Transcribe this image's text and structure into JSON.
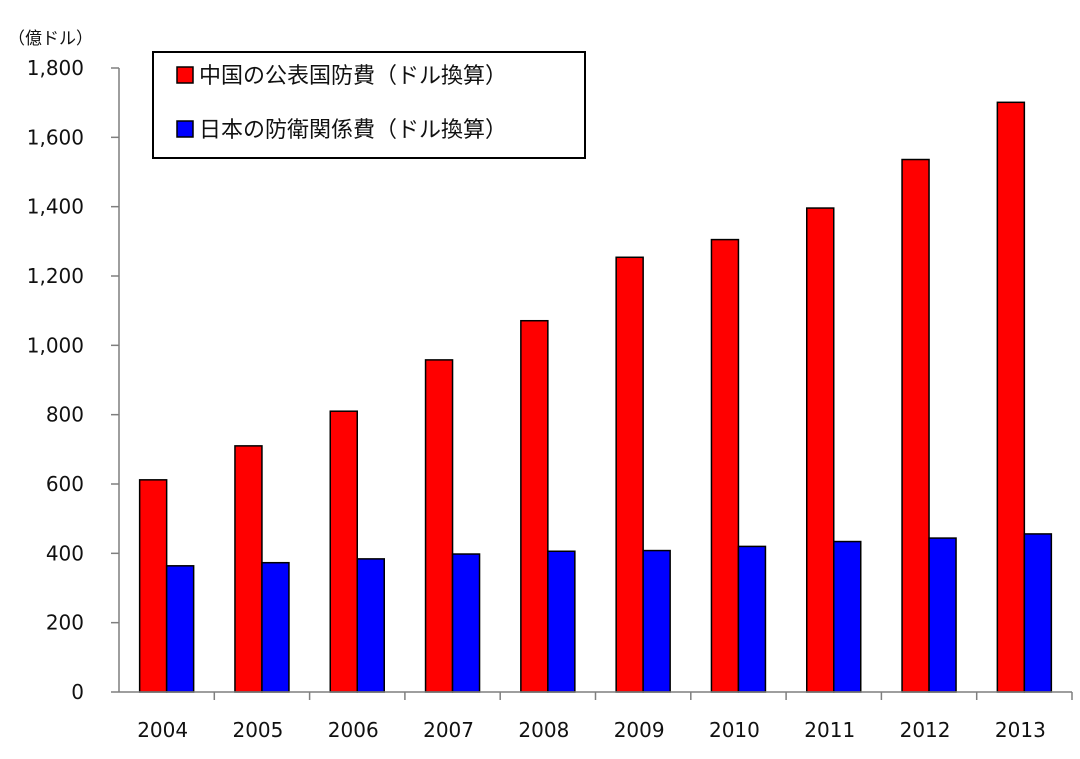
{
  "chart_data": {
    "type": "bar",
    "unit_label": "（億ドル）",
    "categories": [
      "2004",
      "2005",
      "2006",
      "2007",
      "2008",
      "2009",
      "2010",
      "2011",
      "2012",
      "2013"
    ],
    "series": [
      {
        "name": "中国の公表国防費（ドル換算）",
        "color": "#ff0000",
        "values": [
          612,
          710,
          810,
          958,
          1071,
          1254,
          1305,
          1396,
          1536,
          1701
        ]
      },
      {
        "name": "日本の防衛関係費（ドル換算）",
        "color": "#0000ff",
        "values": [
          364,
          373,
          384,
          398,
          406,
          408,
          420,
          434,
          444,
          456
        ]
      }
    ],
    "yticks": [
      "0",
      "200",
      "400",
      "600",
      "800",
      "1,000",
      "1,200",
      "1,400",
      "1,600",
      "1,800"
    ],
    "ylim": [
      0,
      1800
    ],
    "grid": false,
    "legend_position": "top-left"
  }
}
